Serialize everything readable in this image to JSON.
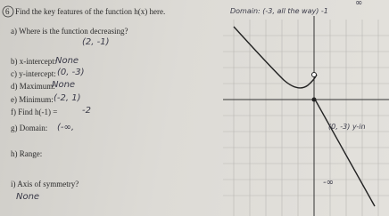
{
  "header": {
    "number": "6",
    "title": "Find the key features of the function h(x) here."
  },
  "questions": [
    {
      "prompt": "a)  Where is the function decreasing?",
      "answer": "(2, -1)"
    },
    {
      "prompt": "b)  x-intercept:",
      "answer": "None"
    },
    {
      "prompt": "c)  y-intercept:",
      "answer": "(0, -3)"
    },
    {
      "prompt": "d)  Maximum:",
      "answer": "None"
    },
    {
      "prompt": "e)  Minimum:",
      "answer": "(-2, 1)"
    },
    {
      "prompt": "f)  Find h(-1) =",
      "answer": "-2"
    },
    {
      "prompt": "g)  Domain:",
      "answer": "(-∞,"
    },
    {
      "prompt": "h)  Range:",
      "answer": ""
    },
    {
      "prompt": "i)  Axis of symmetry?",
      "answer": "None"
    }
  ],
  "notes": [
    "Domain: (-3, all the way) -1",
    "∞",
    "(0, -3) y-in",
    "-∞"
  ]
}
